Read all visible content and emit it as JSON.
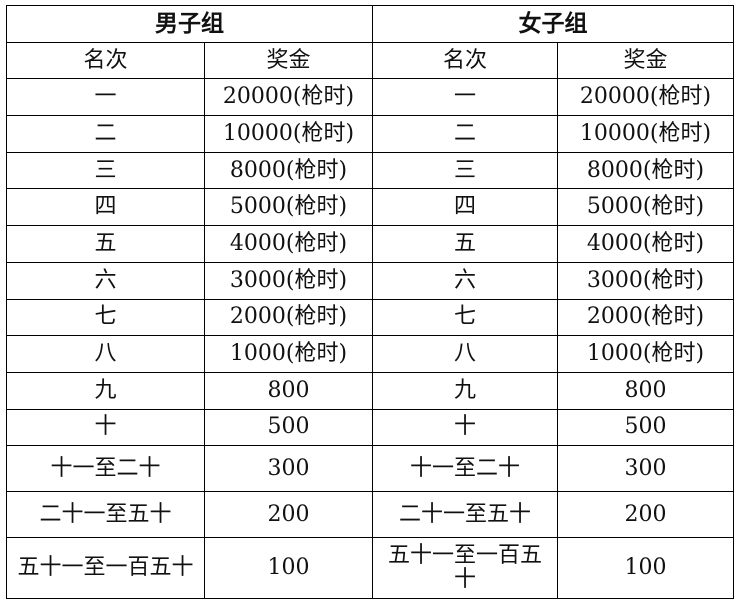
{
  "groups": [
    {
      "title": "男子组",
      "col_rank": "名次",
      "col_prize": "奖金",
      "rows": [
        {
          "rank": "一",
          "prize": "20000(枪时)"
        },
        {
          "rank": "二",
          "prize": "10000(枪时)"
        },
        {
          "rank": "三",
          "prize": "8000(枪时)"
        },
        {
          "rank": "四",
          "prize": "5000(枪时)"
        },
        {
          "rank": "五",
          "prize": "4000(枪时)"
        },
        {
          "rank": "六",
          "prize": "3000(枪时)"
        },
        {
          "rank": "七",
          "prize": "2000(枪时)"
        },
        {
          "rank": "八",
          "prize": "1000(枪时)"
        },
        {
          "rank": "九",
          "prize": "800"
        },
        {
          "rank": "十",
          "prize": "500"
        },
        {
          "rank": "十一至二十",
          "prize": "300"
        },
        {
          "rank": "二十一至五十",
          "prize": "200"
        },
        {
          "rank": "五十一至一百五十",
          "prize": "100"
        }
      ]
    },
    {
      "title": "女子组",
      "col_rank": "名次",
      "col_prize": "奖金",
      "rows": [
        {
          "rank": "一",
          "prize": "20000(枪时)"
        },
        {
          "rank": "二",
          "prize": "10000(枪时)"
        },
        {
          "rank": "三",
          "prize": "8000(枪时)"
        },
        {
          "rank": "四",
          "prize": "5000(枪时)"
        },
        {
          "rank": "五",
          "prize": "4000(枪时)"
        },
        {
          "rank": "六",
          "prize": "3000(枪时)"
        },
        {
          "rank": "七",
          "prize": "2000(枪时)"
        },
        {
          "rank": "八",
          "prize": "1000(枪时)"
        },
        {
          "rank": "九",
          "prize": "800"
        },
        {
          "rank": "十",
          "prize": "500"
        },
        {
          "rank": "十一至二十",
          "prize": "300"
        },
        {
          "rank": "二十一至五十",
          "prize": "200"
        },
        {
          "rank": "五十一至一百五十",
          "prize": "100"
        }
      ]
    }
  ]
}
